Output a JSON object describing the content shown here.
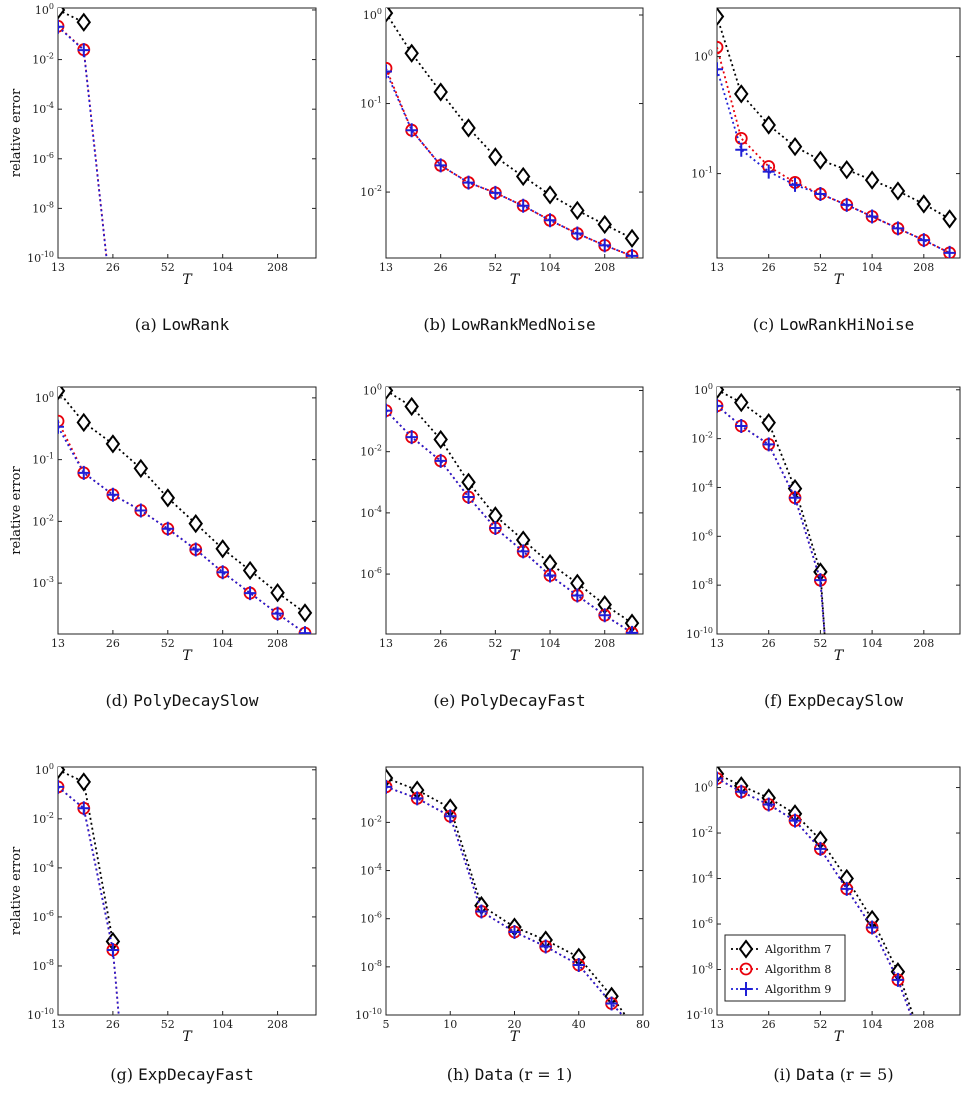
{
  "ylabel_text": "relative error",
  "xlabel_text": "T",
  "legend": {
    "entries": [
      {
        "label": "Algorithm 7",
        "color": "#000000",
        "marker": "diamond"
      },
      {
        "label": "Algorithm 8",
        "color": "#e8000b",
        "marker": "circle"
      },
      {
        "label": "Algorithm 9",
        "color": "#1f1fd6",
        "marker": "plus"
      }
    ]
  },
  "chart_data": [
    {
      "id": "a",
      "type": "line",
      "caption_prefix": "(a)",
      "caption_name": "LowRank",
      "caption_suffix": "",
      "scale": "log",
      "ylim": [
        1e-10,
        1.2
      ],
      "xticks": [
        "13",
        "26",
        "52",
        "104",
        "208"
      ],
      "yticks": [
        "10^0",
        "10^-2",
        "10^-4",
        "10^-6",
        "10^-8",
        "10^-10"
      ],
      "show_ylabel": true,
      "series": [
        {
          "name": "Algorithm 7",
          "x": [
            13,
            18
          ],
          "y": [
            1.0,
            0.32
          ]
        },
        {
          "name": "Algorithm 8",
          "x": [
            13,
            18,
            24
          ],
          "y": [
            0.22,
            0.025,
            1e-10
          ]
        },
        {
          "name": "Algorithm 9",
          "x": [
            13,
            18,
            24
          ],
          "y": [
            0.21,
            0.024,
            1e-10
          ]
        }
      ]
    },
    {
      "id": "b",
      "type": "line",
      "caption_prefix": "(b)",
      "caption_name": "LowRankMedNoise",
      "caption_suffix": "",
      "scale": "log",
      "ylim": [
        0.0018,
        1.2
      ],
      "xticks": [
        "13",
        "26",
        "52",
        "104",
        "208"
      ],
      "yticks": [
        "10^0",
        "10^-1",
        "10^-2"
      ],
      "show_ylabel": false,
      "series": [
        {
          "name": "Algorithm 7",
          "x": [
            13,
            18,
            26,
            37,
            52,
            74,
            104,
            147,
            208,
            294
          ],
          "y": [
            1.05,
            0.37,
            0.135,
            0.053,
            0.025,
            0.015,
            0.0093,
            0.0062,
            0.0043,
            0.003
          ]
        },
        {
          "name": "Algorithm 8",
          "x": [
            13,
            18,
            26,
            37,
            52,
            74,
            104,
            147,
            208,
            294
          ],
          "y": [
            0.25,
            0.05,
            0.02,
            0.0128,
            0.0098,
            0.007,
            0.0048,
            0.0034,
            0.0025,
            0.0019
          ]
        },
        {
          "name": "Algorithm 9",
          "x": [
            13,
            18,
            26,
            37,
            52,
            74,
            104,
            147,
            208,
            294
          ],
          "y": [
            0.23,
            0.05,
            0.02,
            0.0128,
            0.0098,
            0.007,
            0.0048,
            0.0034,
            0.0025,
            0.0019
          ]
        }
      ]
    },
    {
      "id": "c",
      "type": "line",
      "caption_prefix": "(c)",
      "caption_name": "LowRankHiNoise",
      "caption_suffix": "",
      "scale": "log",
      "ylim": [
        0.019,
        2.6
      ],
      "xticks": [
        "13",
        "26",
        "52",
        "104",
        "208"
      ],
      "yticks": [
        "10^0",
        "10^-1"
      ],
      "show_ylabel": false,
      "series": [
        {
          "name": "Algorithm 7",
          "x": [
            13,
            18,
            26,
            37,
            52,
            74,
            104,
            147,
            208,
            294
          ],
          "y": [
            2.2,
            0.48,
            0.26,
            0.17,
            0.13,
            0.108,
            0.088,
            0.071,
            0.055,
            0.041
          ]
        },
        {
          "name": "Algorithm 8",
          "x": [
            13,
            18,
            26,
            37,
            52,
            74,
            104,
            147,
            208,
            294
          ],
          "y": [
            1.2,
            0.2,
            0.115,
            0.084,
            0.067,
            0.054,
            0.043,
            0.034,
            0.027,
            0.021
          ]
        },
        {
          "name": "Algorithm 9",
          "x": [
            13,
            18,
            26,
            37,
            52,
            74,
            104,
            147,
            208,
            294
          ],
          "y": [
            0.78,
            0.16,
            0.104,
            0.08,
            0.067,
            0.054,
            0.043,
            0.034,
            0.027,
            0.021
          ]
        }
      ]
    },
    {
      "id": "d",
      "type": "line",
      "caption_prefix": "(d)",
      "caption_name": "PolyDecaySlow",
      "caption_suffix": "",
      "scale": "log",
      "ylim": [
        0.00015,
        1.5
      ],
      "xticks": [
        "13",
        "26",
        "52",
        "104",
        "208"
      ],
      "yticks": [
        "10^0",
        "10^-1",
        "10^-2",
        "10^-3"
      ],
      "show_ylabel": true,
      "series": [
        {
          "name": "Algorithm 7",
          "x": [
            13,
            18,
            26,
            37,
            52,
            74,
            104,
            147,
            208,
            294
          ],
          "y": [
            1.3,
            0.4,
            0.18,
            0.072,
            0.024,
            0.0092,
            0.0036,
            0.0016,
            0.0007,
            0.00033
          ]
        },
        {
          "name": "Algorithm 8",
          "x": [
            13,
            18,
            26,
            37,
            52,
            74,
            104,
            147,
            208,
            294
          ],
          "y": [
            0.42,
            0.061,
            0.027,
            0.015,
            0.0076,
            0.0035,
            0.0015,
            0.00069,
            0.00032,
            0.000155
          ]
        },
        {
          "name": "Algorithm 9",
          "x": [
            13,
            18,
            26,
            37,
            52,
            74,
            104,
            147,
            208,
            294
          ],
          "y": [
            0.34,
            0.061,
            0.027,
            0.015,
            0.0076,
            0.0035,
            0.0015,
            0.00069,
            0.00032,
            0.000155
          ]
        }
      ]
    },
    {
      "id": "e",
      "type": "line",
      "caption_prefix": "(e)",
      "caption_name": "PolyDecayFast",
      "caption_suffix": "",
      "scale": "log",
      "ylim": [
        1.1e-08,
        1.3
      ],
      "xticks": [
        "13",
        "26",
        "52",
        "104",
        "208"
      ],
      "yticks": [
        "10^0",
        "10^-2",
        "10^-4",
        "10^-6"
      ],
      "show_ylabel": false,
      "series": [
        {
          "name": "Algorithm 7",
          "x": [
            13,
            18,
            26,
            37,
            52,
            74,
            104,
            147,
            208,
            294
          ],
          "y": [
            1.0,
            0.3,
            0.025,
            0.001,
            8e-05,
            1.3e-05,
            2.2e-06,
            5e-07,
            1e-07,
            2.5e-08
          ]
        },
        {
          "name": "Algorithm 8",
          "x": [
            13,
            18,
            26,
            37,
            52,
            74,
            104,
            147,
            208,
            294
          ],
          "y": [
            0.22,
            0.03,
            0.005,
            0.00033,
            3.2e-05,
            5.5e-06,
            9e-07,
            2e-07,
            4.5e-08,
            1.2e-08
          ]
        },
        {
          "name": "Algorithm 9",
          "x": [
            13,
            18,
            26,
            37,
            52,
            74,
            104,
            147,
            208,
            294
          ],
          "y": [
            0.22,
            0.03,
            0.005,
            0.00033,
            3.2e-05,
            5.5e-06,
            9e-07,
            2e-07,
            4.5e-08,
            1.2e-08
          ]
        }
      ]
    },
    {
      "id": "f",
      "type": "line",
      "caption_prefix": "(f)",
      "caption_name": "ExpDecaySlow",
      "caption_suffix": "",
      "scale": "log",
      "ylim": [
        1e-10,
        1.3
      ],
      "xticks": [
        "13",
        "26",
        "52",
        "104",
        "208"
      ],
      "yticks": [
        "10^0",
        "10^-2",
        "10^-4",
        "10^-6",
        "10^-8",
        "10^-10"
      ],
      "show_ylabel": false,
      "series": [
        {
          "name": "Algorithm 7",
          "x": [
            13,
            18,
            26,
            37,
            52,
            55
          ],
          "y": [
            1.0,
            0.3,
            0.045,
            9e-05,
            3.5e-08,
            1e-10
          ]
        },
        {
          "name": "Algorithm 8",
          "x": [
            13,
            18,
            26,
            37,
            52,
            55
          ],
          "y": [
            0.22,
            0.033,
            0.0058,
            3.8e-05,
            1.6e-08,
            1e-10
          ]
        },
        {
          "name": "Algorithm 9",
          "x": [
            13,
            18,
            26,
            37,
            52,
            55
          ],
          "y": [
            0.22,
            0.033,
            0.0058,
            3.8e-05,
            1.6e-08,
            1e-10
          ]
        }
      ]
    },
    {
      "id": "g",
      "type": "line",
      "caption_prefix": "(g)",
      "caption_name": "ExpDecayFast",
      "caption_suffix": "",
      "scale": "log",
      "ylim": [
        1e-10,
        1.3
      ],
      "xticks": [
        "13",
        "26",
        "52",
        "104",
        "208"
      ],
      "yticks": [
        "10^0",
        "10^-2",
        "10^-4",
        "10^-6",
        "10^-8",
        "10^-10"
      ],
      "show_ylabel": true,
      "series": [
        {
          "name": "Algorithm 7",
          "x": [
            13,
            18,
            26
          ],
          "y": [
            1.0,
            0.32,
            1e-07
          ]
        },
        {
          "name": "Algorithm 8",
          "x": [
            13,
            18,
            26,
            28
          ],
          "y": [
            0.2,
            0.027,
            4.5e-08,
            1e-10
          ]
        },
        {
          "name": "Algorithm 9",
          "x": [
            13,
            18,
            26,
            28
          ],
          "y": [
            0.2,
            0.027,
            4.5e-08,
            1e-10
          ]
        }
      ]
    },
    {
      "id": "h",
      "type": "line",
      "caption_prefix": "(h)",
      "caption_name": "Data",
      "caption_suffix": " (r = 1)",
      "scale": "log",
      "ylim": [
        1e-10,
        2
      ],
      "xticks": [
        "5",
        "10",
        "20",
        "40",
        "80"
      ],
      "xdomain": [
        5,
        80
      ],
      "yticks": [
        "10^-2",
        "10^-4",
        "10^-6",
        "10^-8",
        "10^-10"
      ],
      "show_ylabel": false,
      "series": [
        {
          "name": "Algorithm 7",
          "x": [
            5,
            7,
            10,
            14,
            20,
            28,
            40,
            57,
            66
          ],
          "y": [
            0.7,
            0.22,
            0.04,
            3.5e-06,
            4.5e-07,
            1.3e-07,
            2.5e-08,
            6e-10,
            1e-10
          ]
        },
        {
          "name": "Algorithm 8",
          "x": [
            5,
            7,
            10,
            14,
            20,
            28,
            40,
            57,
            64
          ],
          "y": [
            0.3,
            0.1,
            0.018,
            2e-06,
            2.8e-07,
            7e-08,
            1.2e-08,
            3e-10,
            1e-10
          ]
        },
        {
          "name": "Algorithm 9",
          "x": [
            5,
            7,
            10,
            14,
            20,
            28,
            40,
            57,
            64
          ],
          "y": [
            0.3,
            0.1,
            0.018,
            2e-06,
            2.8e-07,
            7e-08,
            1.2e-08,
            3e-10,
            1e-10
          ]
        }
      ]
    },
    {
      "id": "i",
      "type": "line",
      "caption_prefix": "(i)",
      "caption_name": "Data",
      "caption_suffix": " (r = 5)",
      "scale": "log",
      "ylim": [
        1e-10,
        8
      ],
      "xticks": [
        "13",
        "26",
        "52",
        "104",
        "208"
      ],
      "yticks": [
        "10^0",
        "10^-2",
        "10^-4",
        "10^-6",
        "10^-8",
        "10^-10"
      ],
      "show_ylabel": false,
      "legend_visible": true,
      "series": [
        {
          "name": "Algorithm 7",
          "x": [
            13,
            18,
            26,
            37,
            52,
            74,
            104,
            147,
            180
          ],
          "y": [
            4.0,
            1.2,
            0.35,
            0.07,
            0.005,
            0.0001,
            1.6e-06,
            8e-09,
            1e-10
          ]
        },
        {
          "name": "Algorithm 8",
          "x": [
            13,
            18,
            26,
            37,
            52,
            74,
            104,
            147,
            175
          ],
          "y": [
            2.5,
            0.65,
            0.18,
            0.035,
            0.002,
            3.5e-05,
            7e-07,
            3.5e-09,
            1e-10
          ]
        },
        {
          "name": "Algorithm 9",
          "x": [
            13,
            18,
            26,
            37,
            52,
            74,
            104,
            147,
            175
          ],
          "y": [
            2.5,
            0.65,
            0.18,
            0.035,
            0.002,
            3.5e-05,
            7e-07,
            3.5e-09,
            1e-10
          ]
        }
      ]
    }
  ]
}
